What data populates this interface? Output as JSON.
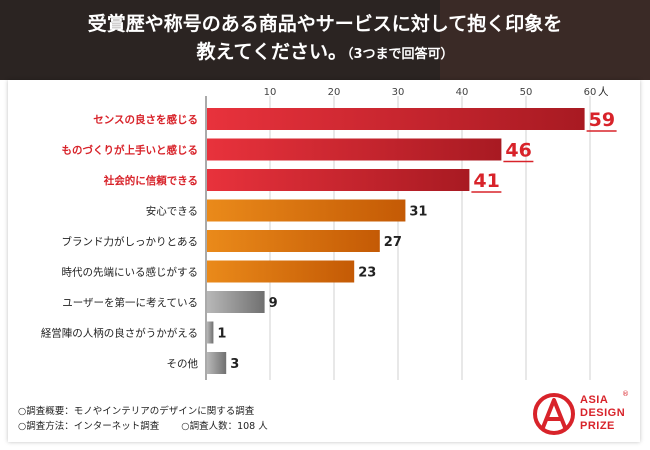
{
  "header": {
    "title_line1": "受賞歴や称号のある商品やサービスに対して抱く印象を",
    "title_line2": "教えてください。",
    "title_note": "（3つまで回答可）"
  },
  "chart_data": {
    "type": "bar",
    "orientation": "horizontal",
    "categories": [
      "センスの良さを感じる",
      "ものづくりが上手いと感じる",
      "社会的に信頼できる",
      "安心できる",
      "ブランド力がしっかりとある",
      "時代の先端にいる感じがする",
      "ユーザーを第一に考えている",
      "経営陣の人柄の良さがうかがえる",
      "その他"
    ],
    "values": [
      59,
      46,
      41,
      31,
      27,
      23,
      9,
      1,
      3
    ],
    "highlight_top": 3,
    "x_ticks": [
      10,
      20,
      30,
      40,
      50,
      60
    ],
    "x_unit": "人",
    "xlim": [
      0,
      60
    ],
    "colors": {
      "highlight": "#d8232a",
      "highlight_label": "#d8232a",
      "mid": "#d9700a",
      "low": "#8c8c8c",
      "grid": "#d0d0d0"
    }
  },
  "notes": {
    "line1": "○調査概要：モノやインテリアのデザインに関する調査",
    "line2a": "○調査方法：インターネット調査",
    "line2b": "○調査人数：108 人"
  },
  "logo": {
    "line1": "ASIA",
    "line2": "DESIGN",
    "line3": "PRIZE",
    "reg": "®"
  }
}
